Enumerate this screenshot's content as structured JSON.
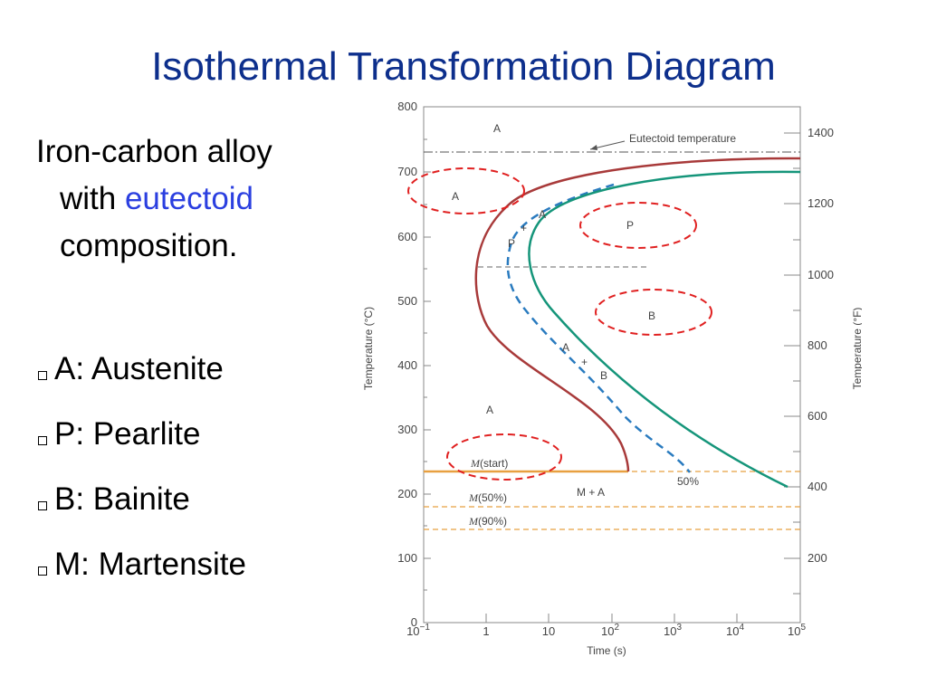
{
  "title": "Isothermal Transformation Diagram",
  "intro": {
    "line1": "Iron-carbon alloy",
    "line2_prefix": "with ",
    "line2_highlight": "eutectoid",
    "line3": "composition."
  },
  "bullets": [
    {
      "label": "A: Austenite"
    },
    {
      "label": "P: Pearlite"
    },
    {
      "label": "B: Bainite"
    },
    {
      "label": "M: Martensite"
    }
  ],
  "diagram": {
    "y_left_ticks": [
      "0",
      "100",
      "200",
      "300",
      "400",
      "500",
      "600",
      "700",
      "800"
    ],
    "y_right_ticks": [
      "200",
      "400",
      "600",
      "800",
      "1000",
      "1200",
      "1400"
    ],
    "x_ticks": [
      "10",
      "1",
      "10",
      "10",
      "10",
      "10",
      "10"
    ],
    "x_tick_exponents": [
      "−1",
      "",
      "",
      "2",
      "3",
      "4",
      "5"
    ],
    "x_label": "Time (s)",
    "y_left_label": "Temperature (°C)",
    "y_right_label": "Temperature (°F)",
    "eutectoid_label": "Eutectoid temperature",
    "regions": {
      "a_top": "A",
      "a_circle": "A",
      "p_circle": "P",
      "b_circle": "B",
      "a_mid": "A",
      "p_small": "P",
      "a_small1": "A",
      "a_small2": "A",
      "b_small": "B",
      "plus1": "+",
      "plus2": "+",
      "m_plus_a": "M + A",
      "fifty_pct": "50%"
    },
    "m_start": "(start)",
    "m_50": "(50%)",
    "m_90": "(90%)",
    "m_letter": "M",
    "colors": {
      "start_curve": "#a83a3a",
      "fifty_curve": "#2a7bbf",
      "finish_curve": "#15957a",
      "martensite": "#e8a040",
      "highlight": "#e02020",
      "title": "#0d2f8c"
    }
  }
}
